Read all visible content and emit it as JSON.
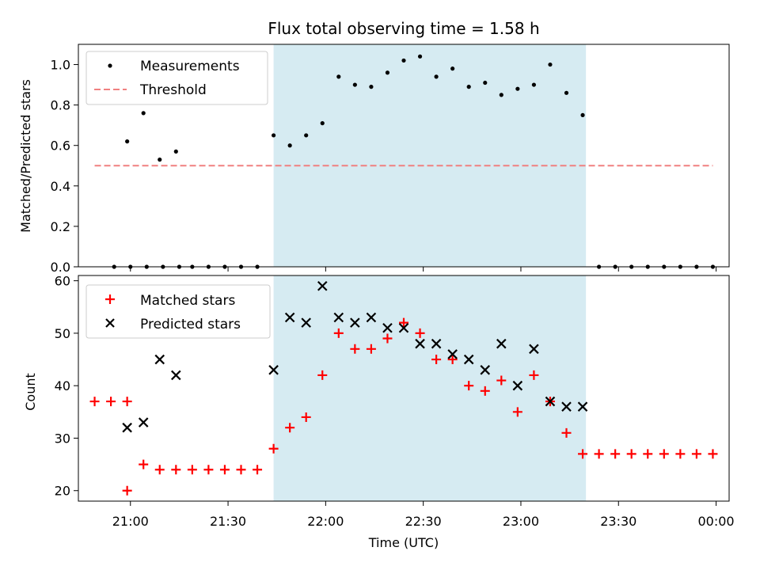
{
  "chart_data": [
    {
      "type": "scatter",
      "title": "Flux total observing time = 1.58 h",
      "xlabel": "",
      "ylabel": "Matched/Predicted stars",
      "xlim": [
        "20:44",
        "00:04"
      ],
      "ylim": [
        0,
        1.1
      ],
      "yticks": [
        "0.0",
        "0.2",
        "0.4",
        "0.6",
        "0.8",
        "1.0"
      ],
      "grid": false,
      "legend_position": "upper-left",
      "highlight_span": {
        "from": "21:44",
        "to": "23:20",
        "color": "#add8e6"
      },
      "series": [
        {
          "name": "Measurements",
          "marker": "dot",
          "color": "#000000",
          "points": [
            [
              "20:55",
              0.0
            ],
            [
              "21:00",
              0.0
            ],
            [
              "21:05",
              0.0
            ],
            [
              "21:10",
              0.0
            ],
            [
              "21:15",
              0.0
            ],
            [
              "20:59",
              0.62
            ],
            [
              "21:04",
              0.76
            ],
            [
              "21:09",
              0.53
            ],
            [
              "21:14",
              0.57
            ],
            [
              "21:19",
              0.0
            ],
            [
              "21:24",
              0.0
            ],
            [
              "21:29",
              0.0
            ],
            [
              "21:34",
              0.0
            ],
            [
              "21:39",
              0.0
            ],
            [
              "21:44",
              0.65
            ],
            [
              "21:49",
              0.6
            ],
            [
              "21:54",
              0.65
            ],
            [
              "21:59",
              0.71
            ],
            [
              "22:04",
              0.94
            ],
            [
              "22:09",
              0.9
            ],
            [
              "22:14",
              0.89
            ],
            [
              "22:19",
              0.96
            ],
            [
              "22:24",
              1.02
            ],
            [
              "22:29",
              1.04
            ],
            [
              "22:34",
              0.94
            ],
            [
              "22:39",
              0.98
            ],
            [
              "22:44",
              0.89
            ],
            [
              "22:49",
              0.91
            ],
            [
              "22:54",
              0.85
            ],
            [
              "22:59",
              0.88
            ],
            [
              "23:04",
              0.9
            ],
            [
              "23:09",
              1.0
            ],
            [
              "23:14",
              0.86
            ],
            [
              "23:19",
              0.75
            ],
            [
              "23:24",
              0.0
            ],
            [
              "23:29",
              0.0
            ],
            [
              "23:34",
              0.0
            ],
            [
              "23:39",
              0.0
            ],
            [
              "23:44",
              0.0
            ],
            [
              "23:49",
              0.0
            ],
            [
              "23:54",
              0.0
            ],
            [
              "23:59",
              0.0
            ]
          ]
        },
        {
          "name": "Threshold",
          "type": "line",
          "style": "dashed",
          "color": "#f08080",
          "points": [
            [
              "20:49",
              0.5
            ],
            [
              "23:59",
              0.5
            ]
          ]
        }
      ]
    },
    {
      "type": "scatter",
      "title": "",
      "xlabel": "Time (UTC)",
      "ylabel": "Count",
      "xlim": [
        "20:44",
        "00:04"
      ],
      "ylim": [
        18,
        61
      ],
      "xticks": [
        "21:00",
        "21:30",
        "22:00",
        "22:30",
        "23:00",
        "23:30",
        "00:00"
      ],
      "yticks": [
        "20",
        "30",
        "40",
        "50",
        "60"
      ],
      "grid": false,
      "legend_position": "upper-left",
      "highlight_span": {
        "from": "21:44",
        "to": "23:20",
        "color": "#add8e6"
      },
      "series": [
        {
          "name": "Matched stars",
          "marker": "plus",
          "color": "#ff0000",
          "points": [
            [
              "20:49",
              37
            ],
            [
              "20:54",
              37
            ],
            [
              "20:59",
              37
            ],
            [
              "20:59",
              20
            ],
            [
              "21:04",
              25
            ],
            [
              "21:09",
              24
            ],
            [
              "21:14",
              24
            ],
            [
              "21:19",
              24
            ],
            [
              "21:24",
              24
            ],
            [
              "21:29",
              24
            ],
            [
              "21:34",
              24
            ],
            [
              "21:39",
              24
            ],
            [
              "21:44",
              28
            ],
            [
              "21:49",
              32
            ],
            [
              "21:54",
              34
            ],
            [
              "21:59",
              42
            ],
            [
              "22:04",
              50
            ],
            [
              "22:09",
              47
            ],
            [
              "22:14",
              47
            ],
            [
              "22:19",
              49
            ],
            [
              "22:24",
              52
            ],
            [
              "22:29",
              50
            ],
            [
              "22:34",
              45
            ],
            [
              "22:39",
              45
            ],
            [
              "22:44",
              40
            ],
            [
              "22:49",
              39
            ],
            [
              "22:54",
              41
            ],
            [
              "22:59",
              35
            ],
            [
              "23:04",
              42
            ],
            [
              "23:09",
              37
            ],
            [
              "23:14",
              31
            ],
            [
              "23:19",
              27
            ],
            [
              "23:24",
              27
            ],
            [
              "23:29",
              27
            ],
            [
              "23:34",
              27
            ],
            [
              "23:39",
              27
            ],
            [
              "23:44",
              27
            ],
            [
              "23:49",
              27
            ],
            [
              "23:54",
              27
            ],
            [
              "23:59",
              27
            ]
          ]
        },
        {
          "name": "Predicted stars",
          "marker": "x",
          "color": "#000000",
          "points": [
            [
              "20:59",
              32
            ],
            [
              "21:04",
              33
            ],
            [
              "21:09",
              45
            ],
            [
              "21:14",
              42
            ],
            [
              "21:44",
              43
            ],
            [
              "21:49",
              53
            ],
            [
              "21:54",
              52
            ],
            [
              "21:59",
              59
            ],
            [
              "22:04",
              53
            ],
            [
              "22:09",
              52
            ],
            [
              "22:14",
              53
            ],
            [
              "22:19",
              51
            ],
            [
              "22:24",
              51
            ],
            [
              "22:29",
              48
            ],
            [
              "22:34",
              48
            ],
            [
              "22:39",
              46
            ],
            [
              "22:44",
              45
            ],
            [
              "22:49",
              43
            ],
            [
              "22:54",
              48
            ],
            [
              "22:59",
              40
            ],
            [
              "23:04",
              47
            ],
            [
              "23:09",
              37
            ],
            [
              "23:14",
              36
            ],
            [
              "23:19",
              36
            ]
          ]
        }
      ]
    }
  ]
}
